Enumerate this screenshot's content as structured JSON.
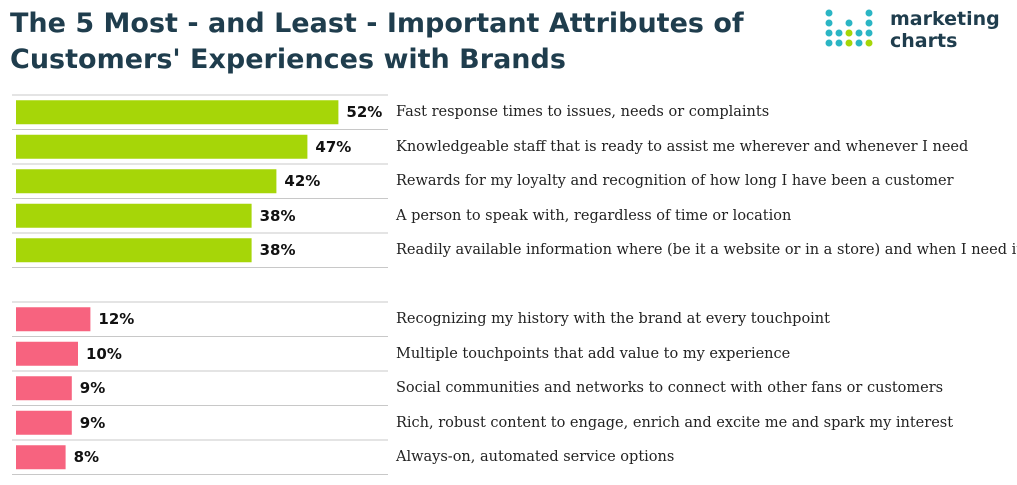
{
  "header": {
    "title": "The 5 Most - and Least - Important Attributes of Customers' Experiences with Brands",
    "logo_line1": "marketing",
    "logo_line2": "charts"
  },
  "colors": {
    "most": "#a6d608",
    "least": "#f7637f",
    "title": "#1f3d4d",
    "gridline": "#c8c8c8"
  },
  "chart_data": {
    "type": "bar",
    "orientation": "horizontal",
    "title": "The 5 Most - and Least - Important Attributes of Customers' Experiences with Brands",
    "categories": [
      "Fast response times to issues, needs or complaints",
      "Knowledgeable staff that is ready to assist me wherever and whenever I need",
      "Rewards for my loyalty and recognition of how long I have been a customer",
      "A person to speak with, regardless of time or location",
      "Readily available information where (be it a website or in a store) and when I need it",
      "",
      "Recognizing my history with the brand at every touchpoint",
      "Multiple touchpoints that add value to my experience",
      "Social communities and networks to connect with other fans or customers",
      "Rich, robust content to engage, enrich and excite me and spark my interest",
      "Always-on, automated service options"
    ],
    "values": [
      52,
      47,
      42,
      38,
      38,
      null,
      12,
      10,
      9,
      9,
      8
    ],
    "value_labels": [
      "52%",
      "47%",
      "42%",
      "38%",
      "38%",
      "",
      "12%",
      "10%",
      "9%",
      "9%",
      "8%"
    ],
    "groups": [
      "most",
      "most",
      "most",
      "most",
      "most",
      "",
      "least",
      "least",
      "least",
      "least",
      "least"
    ],
    "xlim": [
      0,
      60
    ],
    "xlabel": "",
    "ylabel": "",
    "grid": false
  }
}
